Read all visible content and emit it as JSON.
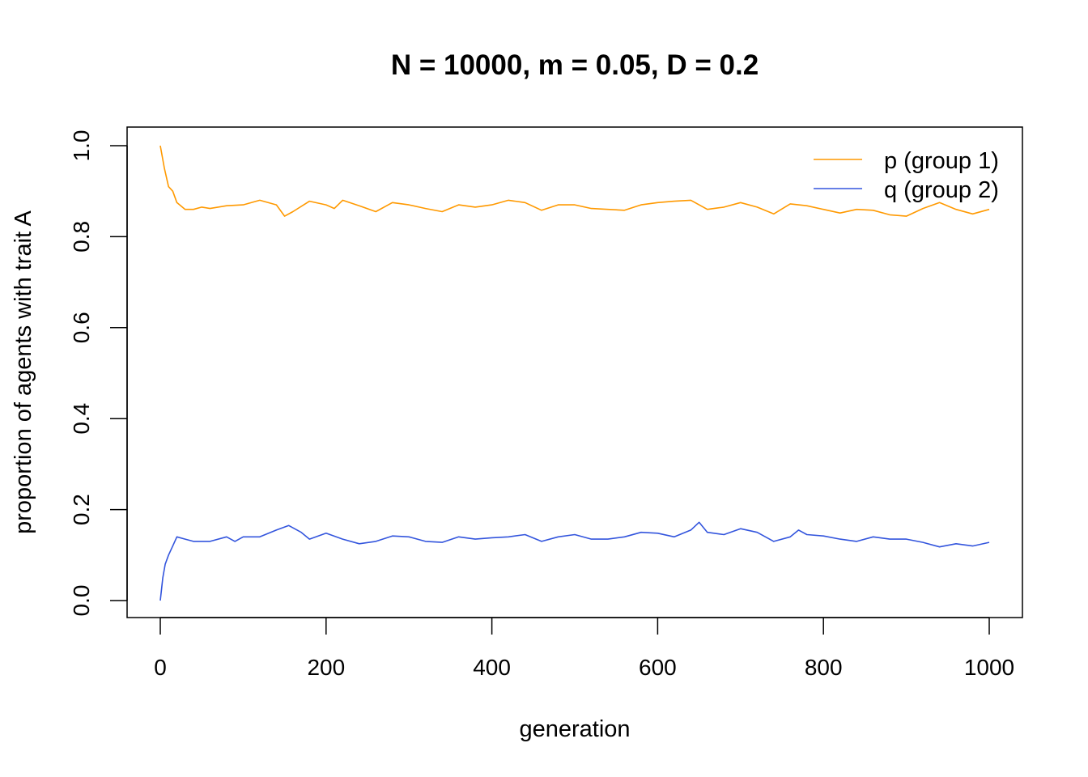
{
  "chart_data": {
    "type": "line",
    "title": "N = 10000, m = 0.05, D = 0.2",
    "xlabel": "generation",
    "ylabel": "proportion of agents with trait A",
    "xlim": [
      0,
      1000
    ],
    "ylim": [
      0,
      1
    ],
    "xticks": [
      "0",
      "200",
      "400",
      "600",
      "800",
      "1000"
    ],
    "yticks": [
      "0.0",
      "0.2",
      "0.4",
      "0.6",
      "0.8",
      "1.0"
    ],
    "grid": false,
    "legend_position": "top-right",
    "series": [
      {
        "name": "p (group 1)",
        "color": "#FF9900",
        "x": [
          0,
          5,
          10,
          15,
          20,
          30,
          40,
          50,
          60,
          80,
          100,
          120,
          140,
          150,
          160,
          180,
          200,
          210,
          220,
          240,
          260,
          280,
          300,
          320,
          340,
          360,
          380,
          400,
          420,
          440,
          460,
          480,
          500,
          520,
          540,
          560,
          580,
          600,
          620,
          640,
          660,
          680,
          700,
          720,
          740,
          760,
          780,
          800,
          820,
          840,
          860,
          880,
          900,
          920,
          940,
          960,
          980,
          1000
        ],
        "y": [
          1.0,
          0.95,
          0.91,
          0.9,
          0.875,
          0.86,
          0.86,
          0.865,
          0.862,
          0.868,
          0.87,
          0.88,
          0.87,
          0.845,
          0.855,
          0.878,
          0.87,
          0.862,
          0.88,
          0.868,
          0.855,
          0.875,
          0.87,
          0.862,
          0.855,
          0.87,
          0.865,
          0.87,
          0.88,
          0.875,
          0.858,
          0.87,
          0.87,
          0.862,
          0.86,
          0.858,
          0.87,
          0.875,
          0.878,
          0.88,
          0.86,
          0.865,
          0.875,
          0.865,
          0.85,
          0.872,
          0.868,
          0.86,
          0.852,
          0.86,
          0.858,
          0.848,
          0.845,
          0.862,
          0.875,
          0.86,
          0.85,
          0.86
        ]
      },
      {
        "name": "q (group 2)",
        "color": "#3355DD",
        "x": [
          0,
          3,
          6,
          10,
          15,
          20,
          30,
          40,
          60,
          80,
          90,
          100,
          120,
          140,
          155,
          170,
          180,
          200,
          220,
          240,
          260,
          280,
          300,
          320,
          340,
          360,
          380,
          400,
          420,
          440,
          460,
          480,
          500,
          520,
          540,
          560,
          580,
          600,
          620,
          640,
          650,
          660,
          680,
          700,
          720,
          740,
          760,
          770,
          780,
          800,
          820,
          840,
          860,
          880,
          900,
          920,
          940,
          960,
          980,
          1000
        ],
        "y": [
          0.0,
          0.05,
          0.08,
          0.1,
          0.12,
          0.14,
          0.135,
          0.13,
          0.13,
          0.14,
          0.13,
          0.14,
          0.14,
          0.155,
          0.165,
          0.15,
          0.135,
          0.148,
          0.135,
          0.125,
          0.13,
          0.142,
          0.14,
          0.13,
          0.128,
          0.14,
          0.135,
          0.138,
          0.14,
          0.145,
          0.13,
          0.14,
          0.145,
          0.135,
          0.135,
          0.14,
          0.15,
          0.148,
          0.14,
          0.155,
          0.172,
          0.15,
          0.145,
          0.158,
          0.15,
          0.13,
          0.14,
          0.155,
          0.145,
          0.142,
          0.135,
          0.13,
          0.14,
          0.135,
          0.135,
          0.128,
          0.118,
          0.125,
          0.12,
          0.128
        ]
      }
    ]
  }
}
